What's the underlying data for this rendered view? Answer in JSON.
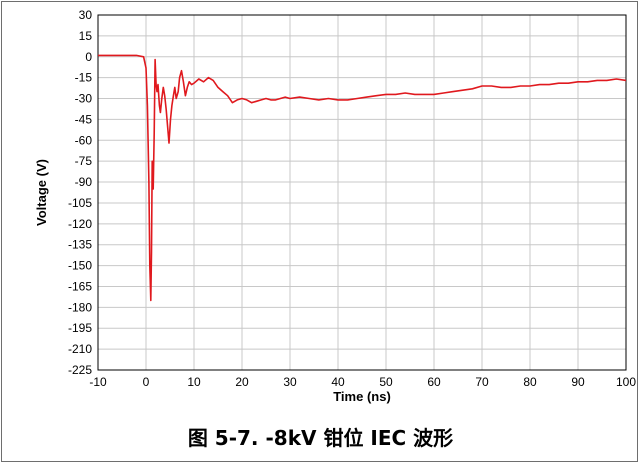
{
  "caption": "图 5-7. -8kV 钳位 IEC 波形",
  "chart_data": {
    "type": "line",
    "title": "",
    "xlabel": "Time (ns)",
    "ylabel": "Voltage (V)",
    "xlim": [
      -10,
      100
    ],
    "ylim": [
      -225,
      30
    ],
    "xticks": [
      -10,
      0,
      10,
      20,
      30,
      40,
      50,
      60,
      70,
      80,
      90,
      100
    ],
    "yticks": [
      30,
      15,
      0,
      -15,
      -30,
      -45,
      -60,
      -75,
      -90,
      -105,
      -120,
      -135,
      -150,
      -165,
      -180,
      -195,
      -210,
      -225
    ],
    "grid": true,
    "legend": "none",
    "series": [
      {
        "color": "#e0191e",
        "x": [
          -10,
          -8,
          -6,
          -4,
          -2,
          -0.5,
          0,
          0.3,
          0.6,
          0.8,
          1.0,
          1.15,
          1.3,
          1.5,
          1.7,
          1.9,
          2.1,
          2.3,
          2.5,
          2.8,
          3.0,
          3.3,
          3.6,
          3.9,
          4.2,
          4.5,
          4.8,
          5.1,
          5.4,
          5.7,
          6.0,
          6.3,
          6.7,
          7.0,
          7.4,
          7.8,
          8.2,
          8.6,
          9.0,
          9.5,
          10,
          11,
          12,
          13,
          14,
          15,
          16,
          17,
          18,
          19,
          20,
          21,
          22,
          23,
          24,
          25,
          26,
          27,
          28,
          29,
          30,
          32,
          34,
          36,
          38,
          40,
          42,
          44,
          46,
          48,
          50,
          52,
          54,
          56,
          58,
          60,
          62,
          64,
          66,
          68,
          70,
          72,
          74,
          76,
          78,
          80,
          82,
          84,
          86,
          88,
          90,
          92,
          94,
          96,
          98,
          100
        ],
        "y": [
          1,
          1,
          1,
          1,
          1,
          0,
          -8,
          -35,
          -90,
          -150,
          -175,
          -140,
          -75,
          -95,
          -55,
          -2,
          -20,
          -25,
          -20,
          -35,
          -40,
          -30,
          -22,
          -28,
          -38,
          -50,
          -62,
          -45,
          -35,
          -28,
          -22,
          -30,
          -25,
          -15,
          -10,
          -18,
          -28,
          -22,
          -18,
          -20,
          -19,
          -16,
          -18,
          -15,
          -17,
          -22,
          -25,
          -28,
          -33,
          -31,
          -30,
          -31,
          -33,
          -32,
          -31,
          -30,
          -31,
          -31,
          -30,
          -29,
          -30,
          -29,
          -30,
          -31,
          -30,
          -31,
          -31,
          -30,
          -29,
          -28,
          -27,
          -27,
          -26,
          -27,
          -27,
          -27,
          -26,
          -25,
          -24,
          -23,
          -21,
          -21,
          -22,
          -22,
          -21,
          -21,
          -20,
          -20,
          -19,
          -19,
          -18,
          -18,
          -17,
          -17,
          -16,
          -17
        ]
      }
    ]
  }
}
